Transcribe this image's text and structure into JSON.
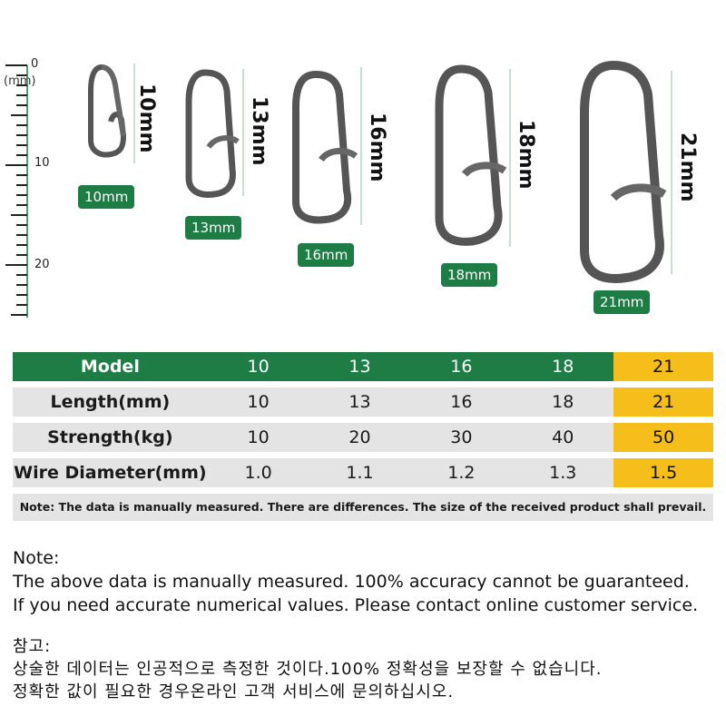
{
  "ruler": {
    "unit": "(mm)",
    "labels": [
      "0",
      "10",
      "20"
    ]
  },
  "clips": [
    {
      "vertical_label": "10mm",
      "tag": "10mm"
    },
    {
      "vertical_label": "13mm",
      "tag": "13mm"
    },
    {
      "vertical_label": "16mm",
      "tag": "16mm"
    },
    {
      "vertical_label": "18mm",
      "tag": "18mm"
    },
    {
      "vertical_label": "21mm",
      "tag": "21mm"
    }
  ],
  "table": {
    "rows": [
      {
        "header": "Model",
        "values": [
          "10",
          "13",
          "16",
          "18",
          "21"
        ]
      },
      {
        "header": "Length(mm)",
        "values": [
          "10",
          "13",
          "16",
          "18",
          "21"
        ]
      },
      {
        "header": "Strength(kg)",
        "values": [
          "10",
          "20",
          "30",
          "40",
          "50"
        ]
      },
      {
        "header": "Wire Diameter(mm)",
        "values": [
          "1.0",
          "1.1",
          "1.2",
          "1.3",
          "1.5"
        ]
      }
    ],
    "note": "Note: The data is manually measured. There are differences. The size of the received product shall prevail."
  },
  "colors": {
    "green": "#1d7d45",
    "highlight": "#f6be1a",
    "gray": "#e4e4e4"
  },
  "notes_en": {
    "title": "Note:",
    "line1": "The above data is manually measured. 100% accuracy cannot be guaranteed.",
    "line2": "If you need accurate numerical values. Please contact online customer service."
  },
  "notes_kr": {
    "title": "참고:",
    "line1": "상술한 데이터는 인공적으로 측정한 것이다.100% 정확성을 보장할 수 없습니다.",
    "line2": "정확한 값이 필요한 경우온라인 고객 서비스에 문의하십시오."
  }
}
